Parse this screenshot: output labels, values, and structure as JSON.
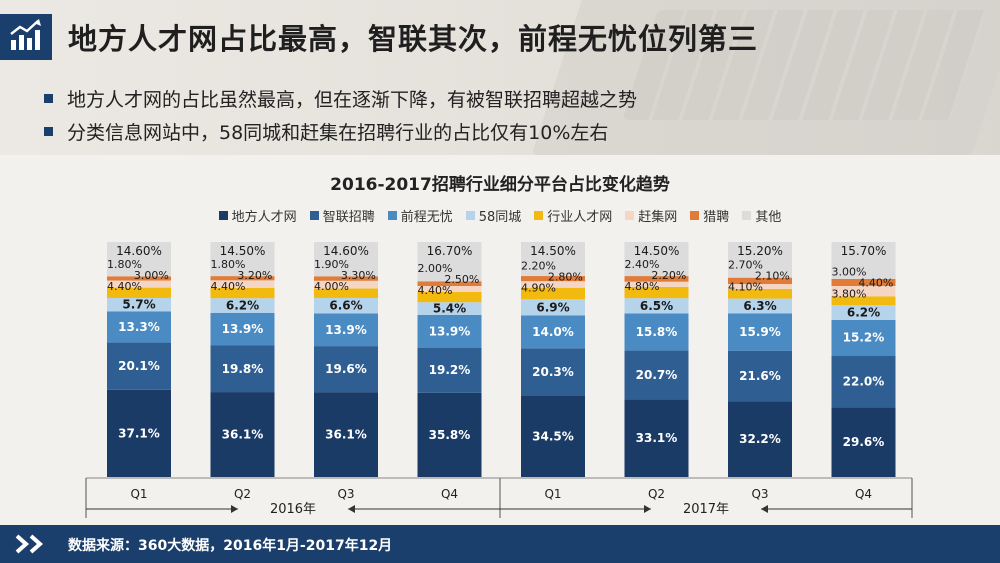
{
  "header": {
    "title": "地方人才网占比最高，智联其次，前程无忧位列第三",
    "icon": "bar-chart-trend-icon"
  },
  "bullets": [
    "地方人才网的占比虽然最高，但在逐渐下降，有被智联招聘超越之势",
    "分类信息网站中，58同城和赶集在招聘行业的占比仅有10%左右"
  ],
  "footer": {
    "icon": "double-chevron-right-icon",
    "source": "数据来源：360大数据，2016年1月-2017年12月"
  },
  "chart_data": {
    "type": "bar",
    "stacked": true,
    "normalized_percent": true,
    "title": "2016-2017招聘行业细分平台占比变化趋势",
    "categories": [
      "Q1",
      "Q2",
      "Q3",
      "Q4",
      "Q1",
      "Q2",
      "Q3",
      "Q4"
    ],
    "groups": [
      {
        "label": "2016年",
        "from": 0,
        "to": 3
      },
      {
        "label": "2017年",
        "from": 4,
        "to": 7
      }
    ],
    "legend_position": "top",
    "grid": false,
    "series": [
      {
        "name": "地方人才网",
        "color": "#1a3b66",
        "label_color": "#ffffff",
        "label_bold": true,
        "values": [
          "37.1%",
          "36.1%",
          "36.1%",
          "35.8%",
          "34.5%",
          "33.1%",
          "32.2%",
          "29.6%"
        ]
      },
      {
        "name": "智联招聘",
        "color": "#2f5f92",
        "label_color": "#ffffff",
        "label_bold": true,
        "values": [
          "20.1%",
          "19.8%",
          "19.6%",
          "19.2%",
          "20.3%",
          "20.7%",
          "21.6%",
          "22.0%"
        ]
      },
      {
        "name": "前程无忧",
        "color": "#4a8bc4",
        "label_color": "#ffffff",
        "label_bold": true,
        "values": [
          "13.3%",
          "13.9%",
          "13.9%",
          "13.9%",
          "14.0%",
          "15.8%",
          "15.9%",
          "15.2%"
        ]
      },
      {
        "name": "58同城",
        "color": "#b5d3ea",
        "label_color": "#1a1a1a",
        "label_bold": true,
        "values": [
          "5.7%",
          "6.2%",
          "6.6%",
          "5.4%",
          "6.9%",
          "6.5%",
          "6.3%",
          "6.2%"
        ]
      },
      {
        "name": "行业人才网",
        "color": "#f2b90f",
        "label_color": "#1a1a1a",
        "label_bold": false,
        "values": [
          "4.40%",
          "4.40%",
          "4.00%",
          "4.40%",
          "4.90%",
          "4.80%",
          "4.10%",
          "3.80%"
        ]
      },
      {
        "name": "赶集网",
        "color": "#f5d6c4",
        "label_color": "#1a1a1a",
        "label_bold": false,
        "values": [
          "3.00%",
          "3.20%",
          "3.30%",
          "2.50%",
          "2.80%",
          "2.20%",
          "2.10%",
          "4.40%"
        ]
      },
      {
        "name": "猎聘",
        "color": "#e07b38",
        "label_color": "#1a1a1a",
        "label_bold": false,
        "values": [
          "1.80%",
          "1.80%",
          "1.90%",
          "2.00%",
          "2.20%",
          "2.40%",
          "2.70%",
          "3.00%"
        ]
      },
      {
        "name": "其他",
        "color": "#dcdcdc",
        "label_color": "#1a1a1a",
        "label_bold": false,
        "values": [
          "14.60%",
          "14.50%",
          "14.60%",
          "16.70%",
          "14.50%",
          "14.50%",
          "15.20%",
          "15.70%"
        ]
      }
    ]
  }
}
